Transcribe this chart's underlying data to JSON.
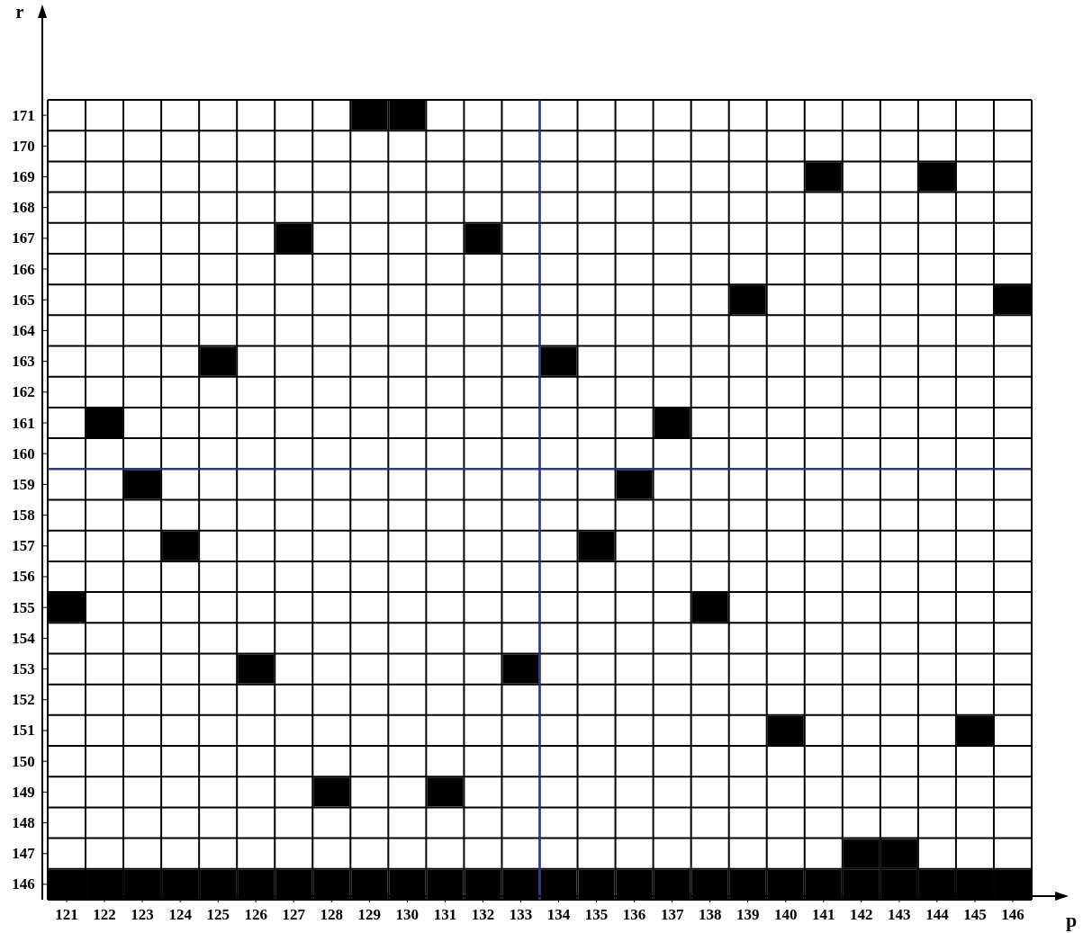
{
  "chart_data": {
    "type": "scatter",
    "xlabel": "p",
    "ylabel": "r",
    "marker": "square",
    "grid": true,
    "xlim": [
      120.5,
      146.5
    ],
    "ylim": [
      145.5,
      171.5
    ],
    "xticks": [
      121,
      122,
      123,
      124,
      125,
      126,
      127,
      128,
      129,
      130,
      131,
      132,
      133,
      134,
      135,
      136,
      137,
      138,
      139,
      140,
      141,
      142,
      143,
      144,
      145,
      146
    ],
    "yticks": [
      146,
      147,
      148,
      149,
      150,
      151,
      152,
      153,
      154,
      155,
      156,
      157,
      158,
      159,
      160,
      161,
      162,
      163,
      164,
      165,
      166,
      167,
      168,
      169,
      170,
      171
    ],
    "ref_lines": [
      {
        "axis": "x",
        "value": 133.5,
        "color": "#2b3990"
      },
      {
        "axis": "y",
        "value": 159.5,
        "color": "#2b3990"
      }
    ],
    "series": [
      {
        "color": "#000000",
        "x": [
          129,
          130,
          141,
          144,
          127,
          132,
          139,
          146,
          125,
          134,
          122,
          137,
          123,
          136,
          124,
          135,
          121,
          138,
          126,
          133,
          140,
          145,
          128,
          131,
          142,
          143,
          121,
          122,
          123,
          124,
          125,
          126,
          127,
          128,
          129,
          130,
          131,
          132,
          133,
          134,
          135,
          136,
          137,
          138,
          139,
          140,
          141,
          142,
          143,
          144,
          145,
          146
        ],
        "values": [
          171,
          171,
          169,
          169,
          167,
          167,
          165,
          165,
          163,
          163,
          161,
          161,
          159,
          159,
          157,
          157,
          155,
          155,
          153,
          153,
          151,
          151,
          149,
          149,
          147,
          147,
          146,
          146,
          146,
          146,
          146,
          146,
          146,
          146,
          146,
          146,
          146,
          146,
          146,
          146,
          146,
          146,
          146,
          146,
          146,
          146,
          146,
          146,
          146,
          146,
          146,
          146
        ]
      }
    ]
  }
}
